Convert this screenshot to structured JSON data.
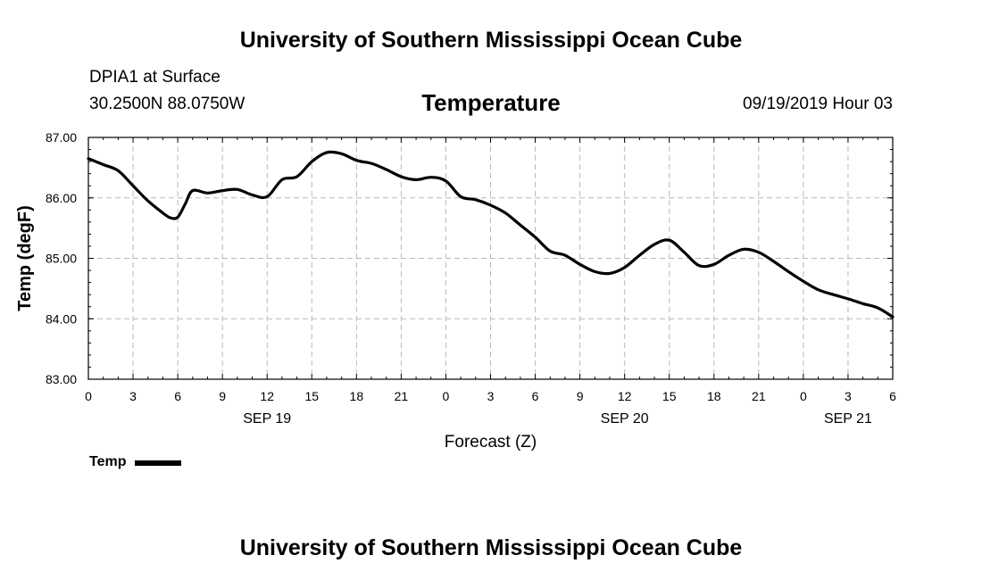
{
  "header": {
    "title": "University of Southern Mississippi Ocean Cube",
    "station": "DPIA1 at Surface",
    "location": "30.2500N 88.0750W",
    "variable": "Temperature",
    "datetime": "09/19/2019 Hour 03"
  },
  "footer": {
    "title": "University of Southern Mississippi Ocean Cube"
  },
  "legend": {
    "label": "Temp"
  },
  "chart_data": {
    "type": "line",
    "title": "Temperature",
    "xlabel": "Forecast (Z)",
    "ylabel": "Temp (degF)",
    "xlim": [
      0,
      54
    ],
    "ylim": [
      83.0,
      87.0
    ],
    "x_ticks": [
      0,
      3,
      6,
      9,
      12,
      15,
      18,
      21,
      24,
      27,
      30,
      33,
      36,
      39,
      42,
      45,
      48,
      51,
      54
    ],
    "x_tick_labels": [
      "0",
      "3",
      "6",
      "9",
      "12",
      "15",
      "18",
      "21",
      "0",
      "3",
      "6",
      "9",
      "12",
      "15",
      "18",
      "21",
      "0",
      "3",
      "6"
    ],
    "day_labels": [
      {
        "x": 12,
        "label": "SEP 19"
      },
      {
        "x": 36,
        "label": "SEP 20"
      },
      {
        "x": 51,
        "label": "SEP 21"
      }
    ],
    "y_ticks": [
      83.0,
      84.0,
      85.0,
      86.0,
      87.0
    ],
    "y_tick_labels": [
      "83.00",
      "84.00",
      "85.00",
      "86.00",
      "87.00"
    ],
    "grid": true,
    "series": [
      {
        "name": "Temp",
        "color": "#000000",
        "x": [
          0,
          1,
          2,
          3,
          4,
          5,
          5.5,
          6,
          6.5,
          7,
          8,
          9,
          10,
          11,
          12,
          13,
          14,
          15,
          16,
          17,
          18,
          19,
          20,
          21,
          22,
          23,
          24,
          25,
          26,
          27,
          28,
          29,
          30,
          31,
          32,
          33,
          34,
          35,
          36,
          37,
          38,
          39,
          40,
          41,
          42,
          43,
          44,
          45,
          46,
          47,
          48,
          49,
          50,
          51,
          52,
          53,
          54
        ],
        "values": [
          86.65,
          86.55,
          86.45,
          86.2,
          85.95,
          85.75,
          85.67,
          85.68,
          85.9,
          86.12,
          86.08,
          86.12,
          86.14,
          86.05,
          86.02,
          86.3,
          86.35,
          86.6,
          86.75,
          86.73,
          86.62,
          86.57,
          86.47,
          86.35,
          86.3,
          86.34,
          86.28,
          86.02,
          85.97,
          85.88,
          85.75,
          85.55,
          85.35,
          85.12,
          85.05,
          84.9,
          84.78,
          84.75,
          84.85,
          85.05,
          85.23,
          85.3,
          85.1,
          84.88,
          84.9,
          85.05,
          85.15,
          85.1,
          84.95,
          84.78,
          84.62,
          84.48,
          84.4,
          84.33,
          84.25,
          84.18,
          84.03
        ]
      }
    ]
  }
}
